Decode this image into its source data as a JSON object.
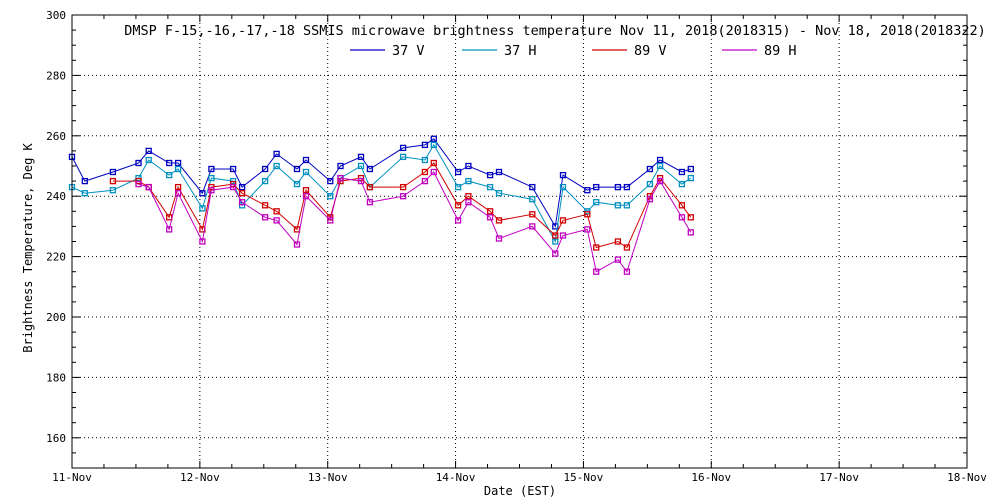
{
  "chart_data": {
    "type": "line",
    "title": "DMSP F-15,-16,-17,-18 SSMIS microwave brightness temperature Nov 11, 2018(2018315) - Nov 18, 2018(2018322)",
    "xlabel": "Date (EST)",
    "ylabel": "Brightness Temperature, Deg K",
    "xlim": [
      0,
      7
    ],
    "ylim": [
      150,
      300
    ],
    "grid": true,
    "legend_position": "top-center",
    "x_tick_labels": [
      "11-Nov",
      "12-Nov",
      "13-Nov",
      "14-Nov",
      "15-Nov",
      "16-Nov",
      "17-Nov",
      "18-Nov"
    ],
    "y_tick_values": [
      160,
      180,
      200,
      220,
      240,
      260,
      280,
      300
    ],
    "series": [
      {
        "name": "37 V",
        "color": "#0000c0",
        "points": [
          [
            0.0,
            253
          ],
          [
            0.1,
            245
          ],
          [
            0.32,
            248
          ],
          [
            0.52,
            251
          ],
          [
            0.6,
            255
          ],
          [
            0.76,
            251
          ],
          [
            0.83,
            251
          ],
          [
            1.02,
            241
          ],
          [
            1.09,
            249
          ],
          [
            1.26,
            249
          ],
          [
            1.33,
            243
          ],
          [
            1.51,
            249
          ],
          [
            1.6,
            254
          ],
          [
            1.76,
            249
          ],
          [
            1.83,
            252
          ],
          [
            2.02,
            245
          ],
          [
            2.1,
            250
          ],
          [
            2.26,
            253
          ],
          [
            2.33,
            249
          ],
          [
            2.59,
            256
          ],
          [
            2.76,
            257
          ],
          [
            2.83,
            259
          ],
          [
            3.02,
            248
          ],
          [
            3.1,
            250
          ],
          [
            3.27,
            247
          ],
          [
            3.34,
            248
          ],
          [
            3.6,
            243
          ],
          [
            3.78,
            230
          ],
          [
            3.84,
            247
          ],
          [
            4.03,
            242
          ],
          [
            4.1,
            243
          ],
          [
            4.27,
            243
          ],
          [
            4.34,
            243
          ],
          [
            4.52,
            249
          ],
          [
            4.6,
            252
          ],
          [
            4.77,
            248
          ],
          [
            4.84,
            249
          ]
        ]
      },
      {
        "name": "37 H",
        "color": "#0090c0",
        "points": [
          [
            0.0,
            243
          ],
          [
            0.1,
            241
          ],
          [
            0.32,
            242
          ],
          [
            0.52,
            246
          ],
          [
            0.6,
            252
          ],
          [
            0.76,
            247
          ],
          [
            0.83,
            249
          ],
          [
            1.02,
            236
          ],
          [
            1.09,
            246
          ],
          [
            1.26,
            245
          ],
          [
            1.33,
            237
          ],
          [
            1.51,
            245
          ],
          [
            1.6,
            250
          ],
          [
            1.76,
            244
          ],
          [
            1.83,
            248
          ],
          [
            2.02,
            240
          ],
          [
            2.1,
            246
          ],
          [
            2.26,
            250
          ],
          [
            2.33,
            243
          ],
          [
            2.59,
            253
          ],
          [
            2.76,
            252
          ],
          [
            2.83,
            257
          ],
          [
            3.02,
            243
          ],
          [
            3.1,
            245
          ],
          [
            3.27,
            243
          ],
          [
            3.34,
            241
          ],
          [
            3.6,
            239
          ],
          [
            3.78,
            225
          ],
          [
            3.84,
            243
          ],
          [
            4.03,
            235
          ],
          [
            4.1,
            238
          ],
          [
            4.27,
            237
          ],
          [
            4.34,
            237
          ],
          [
            4.52,
            244
          ],
          [
            4.6,
            250
          ],
          [
            4.77,
            244
          ],
          [
            4.84,
            246
          ]
        ]
      },
      {
        "name": "89 V",
        "color": "#d00000",
        "points": [
          [
            0.32,
            245
          ],
          [
            0.52,
            245
          ],
          [
            0.6,
            243
          ],
          [
            0.76,
            233
          ],
          [
            0.83,
            243
          ],
          [
            1.02,
            229
          ],
          [
            1.09,
            243
          ],
          [
            1.26,
            244
          ],
          [
            1.33,
            241
          ],
          [
            1.51,
            237
          ],
          [
            1.6,
            235
          ],
          [
            1.76,
            229
          ],
          [
            1.83,
            242
          ],
          [
            2.02,
            233
          ],
          [
            2.1,
            245
          ],
          [
            2.26,
            246
          ],
          [
            2.33,
            243
          ],
          [
            2.59,
            243
          ],
          [
            2.76,
            248
          ],
          [
            2.83,
            251
          ],
          [
            3.02,
            237
          ],
          [
            3.1,
            240
          ],
          [
            3.27,
            235
          ],
          [
            3.34,
            232
          ],
          [
            3.6,
            234
          ],
          [
            3.78,
            227
          ],
          [
            3.84,
            232
          ],
          [
            4.03,
            234
          ],
          [
            4.1,
            223
          ],
          [
            4.27,
            225
          ],
          [
            4.34,
            223
          ],
          [
            4.52,
            240
          ],
          [
            4.6,
            246
          ],
          [
            4.77,
            237
          ],
          [
            4.84,
            233
          ]
        ]
      },
      {
        "name": "89 H",
        "color": "#c000c0",
        "points": [
          [
            0.52,
            244
          ],
          [
            0.6,
            243
          ],
          [
            0.76,
            229
          ],
          [
            0.83,
            241
          ],
          [
            1.02,
            225
          ],
          [
            1.09,
            242
          ],
          [
            1.26,
            243
          ],
          [
            1.33,
            238
          ],
          [
            1.51,
            233
          ],
          [
            1.6,
            232
          ],
          [
            1.76,
            224
          ],
          [
            1.83,
            240
          ],
          [
            2.02,
            232
          ],
          [
            2.1,
            246
          ],
          [
            2.26,
            245
          ],
          [
            2.33,
            238
          ],
          [
            2.59,
            240
          ],
          [
            2.76,
            245
          ],
          [
            2.83,
            248
          ],
          [
            3.02,
            232
          ],
          [
            3.1,
            238
          ],
          [
            3.27,
            233
          ],
          [
            3.34,
            226
          ],
          [
            3.6,
            230
          ],
          [
            3.78,
            221
          ],
          [
            3.84,
            227
          ],
          [
            4.03,
            229
          ],
          [
            4.1,
            215
          ],
          [
            4.27,
            219
          ],
          [
            4.34,
            215
          ],
          [
            4.52,
            239
          ],
          [
            4.6,
            245
          ],
          [
            4.77,
            233
          ],
          [
            4.84,
            228
          ]
        ]
      }
    ]
  }
}
